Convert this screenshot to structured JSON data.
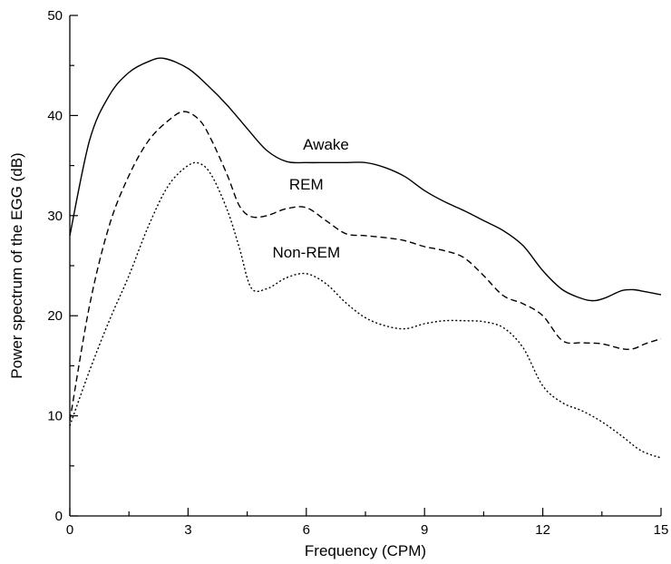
{
  "chart_data": {
    "type": "line",
    "xlabel": "Frequency (CPM)",
    "ylabel": "Power spectrum of the EGG (dB)",
    "xlim": [
      0,
      15
    ],
    "ylim": [
      0,
      50
    ],
    "x_ticks": [
      0,
      3,
      6,
      9,
      12,
      15
    ],
    "y_ticks": [
      0,
      10,
      20,
      30,
      40,
      50
    ],
    "grid": false,
    "series": [
      {
        "name": "Awake",
        "style": "solid",
        "x": [
          0,
          0.5,
          1,
          1.5,
          2,
          2.4,
          3,
          3.5,
          4,
          4.5,
          5,
          5.5,
          6,
          6.5,
          7,
          7.5,
          8,
          8.5,
          9,
          9.5,
          10,
          10.5,
          11,
          11.5,
          12,
          12.5,
          13,
          13.3,
          13.6,
          14,
          14.3,
          14.6,
          15
        ],
        "values": [
          28,
          37.5,
          42,
          44.3,
          45.4,
          45.7,
          44.7,
          43,
          41,
          38.7,
          36.5,
          35.4,
          35.3,
          35.3,
          35.3,
          35.3,
          34.8,
          33.9,
          32.5,
          31.4,
          30.5,
          29.5,
          28.5,
          27,
          24.5,
          22.6,
          21.7,
          21.5,
          21.8,
          22.5,
          22.6,
          22.4,
          22.1
        ]
      },
      {
        "name": "REM",
        "style": "dashed",
        "x": [
          0,
          0.5,
          1,
          1.5,
          2,
          2.5,
          2.9,
          3.3,
          3.6,
          4,
          4.3,
          4.6,
          5,
          5.5,
          6,
          6.5,
          7,
          7.5,
          8,
          8.5,
          9,
          9.5,
          10,
          10.5,
          11,
          11.5,
          12,
          12.5,
          13,
          13.5,
          14,
          14.3,
          14.6,
          15
        ],
        "values": [
          9.5,
          21,
          29,
          34,
          37.5,
          39.5,
          40.4,
          39.5,
          37.5,
          34,
          31,
          29.9,
          30,
          30.7,
          30.8,
          29.5,
          28.2,
          28,
          27.8,
          27.5,
          26.9,
          26.5,
          25.8,
          24,
          22,
          21.2,
          20,
          17.5,
          17.3,
          17.2,
          16.7,
          16.7,
          17.2,
          17.7
        ]
      },
      {
        "name": "Non-REM",
        "style": "dotted",
        "x": [
          0,
          0.5,
          1,
          1.5,
          2,
          2.5,
          3,
          3.3,
          3.6,
          4,
          4.3,
          4.6,
          5,
          5.5,
          6,
          6.5,
          7,
          7.5,
          8,
          8.5,
          9,
          9.5,
          10,
          10.5,
          11,
          11.5,
          12,
          12.5,
          13,
          13.5,
          14,
          14.5,
          15
        ],
        "values": [
          9,
          14.5,
          19.5,
          24,
          29,
          33,
          35,
          35.2,
          34,
          30.5,
          26.8,
          22.8,
          22.7,
          23.8,
          24.2,
          23.2,
          21.3,
          19.8,
          19,
          18.7,
          19.2,
          19.5,
          19.5,
          19.4,
          18.8,
          16.8,
          13,
          11.3,
          10.5,
          9.4,
          8,
          6.5,
          5.8
        ]
      }
    ],
    "annotations": [
      {
        "text": "Awake",
        "x": 6.5,
        "y": 36.6
      },
      {
        "text": "REM",
        "x": 6.0,
        "y": 32.6
      },
      {
        "text": "Non-REM",
        "x": 6.0,
        "y": 25.8
      }
    ]
  }
}
